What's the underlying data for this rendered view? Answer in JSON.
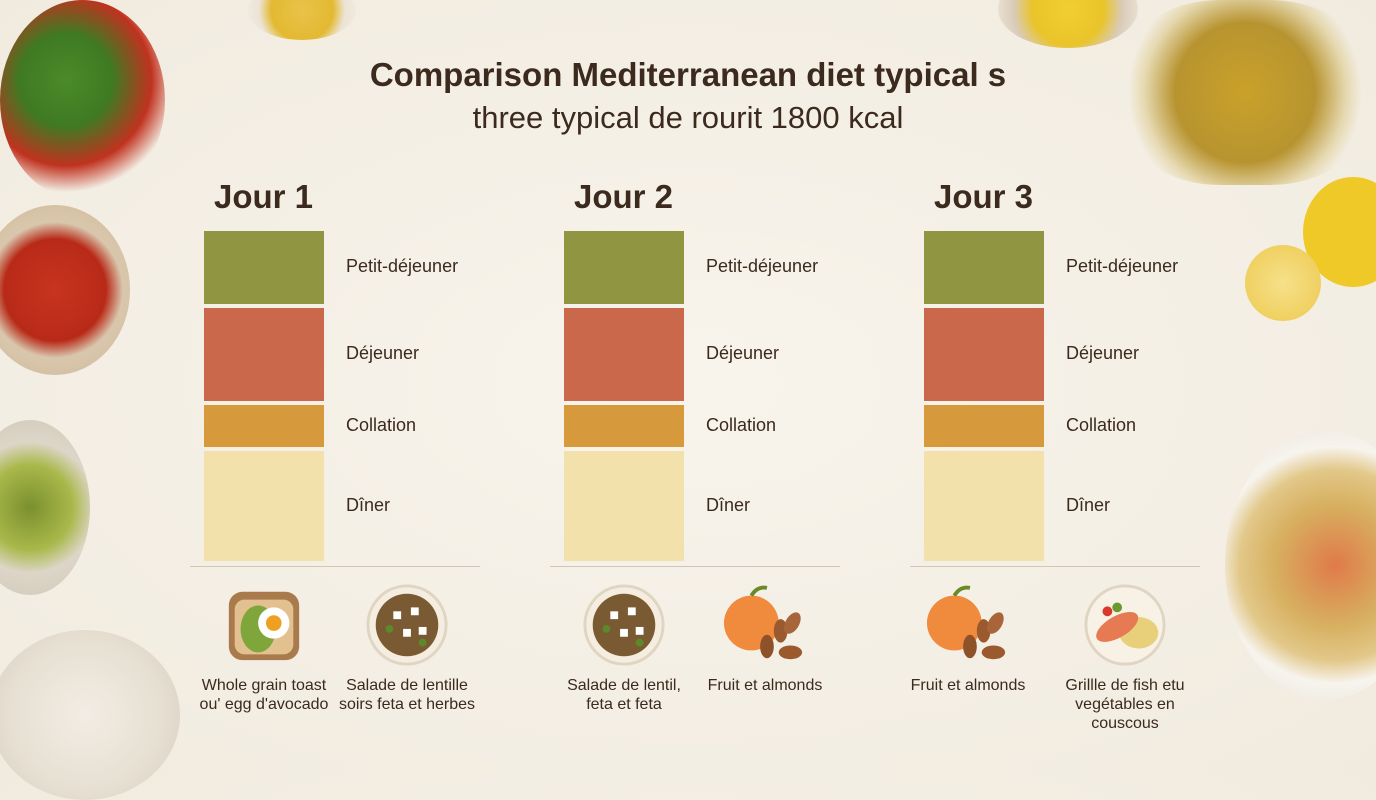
{
  "title": "Comparison Mediterranean diet typical s",
  "subtitle": "three typical de rourit 1800 kcal",
  "colors": {
    "breakfast": "#8f9541",
    "lunch": "#c9684b",
    "snack": "#d69a3c",
    "dinner": "#f3e1ac",
    "background": "#f4efe5"
  },
  "chart_data": {
    "type": "bar",
    "stacked": true,
    "categories": [
      "Jour 1",
      "Jour 2",
      "Jour 3"
    ],
    "series": [
      {
        "name": "Petit-déjeuner",
        "values": [
          0.23,
          0.23,
          0.23
        ]
      },
      {
        "name": "Déjeuner",
        "values": [
          0.29,
          0.29,
          0.29
        ]
      },
      {
        "name": "Collation",
        "values": [
          0.14,
          0.14,
          0.14
        ]
      },
      {
        "name": "Dîner",
        "values": [
          0.34,
          0.34,
          0.34
        ]
      }
    ],
    "grid": false
  },
  "days": [
    {
      "title": "Jour 1",
      "meals": [
        {
          "icon": "avocado-egg-toast-icon",
          "caption": "Whole grain toast ou' egg d'avocado"
        },
        {
          "icon": "lentil-salad-icon",
          "caption": "Salade de lentille soirs feta et herbes"
        }
      ]
    },
    {
      "title": "Jour 2",
      "meals": [
        {
          "icon": "lentil-salad-icon",
          "caption": "Salade de lentil, feta et feta"
        },
        {
          "icon": "fruit-almonds-icon",
          "caption": "Fruit et almonds"
        }
      ]
    },
    {
      "title": "Jour 3",
      "meals": [
        {
          "icon": "fruit-almonds-icon",
          "caption": "Fruit et almonds"
        },
        {
          "icon": "grilled-fish-icon",
          "caption": "Grillle de fish etu vegétables en couscous"
        }
      ]
    }
  ]
}
